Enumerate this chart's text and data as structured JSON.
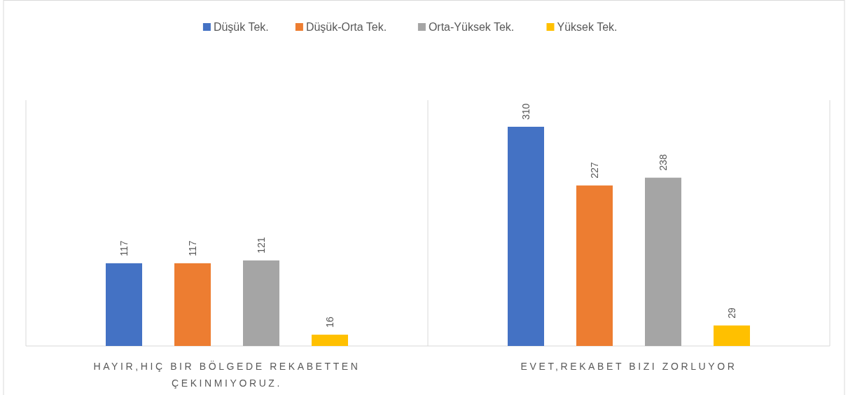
{
  "chart_data": {
    "type": "bar",
    "categories": [
      "HAYIR,HIÇ BIR BÖLGEDE REKABETTEN ÇEKINMIYORUZ.",
      "EVET,REKABET BIZI ZORLUYOR"
    ],
    "series": [
      {
        "name": "Düşük Tek.",
        "color": "#4472c4",
        "values": [
          117,
          310
        ]
      },
      {
        "name": "Düşük-Orta Tek.",
        "color": "#ed7d31",
        "values": [
          117,
          227
        ]
      },
      {
        "name": "Orta-Yüksek Tek.",
        "color": "#a5a5a5",
        "values": [
          121,
          238
        ]
      },
      {
        "name": "Yüksek Tek.",
        "color": "#ffc000",
        "values": [
          16,
          29
        ]
      }
    ],
    "data_labels": true,
    "legend": "top"
  }
}
